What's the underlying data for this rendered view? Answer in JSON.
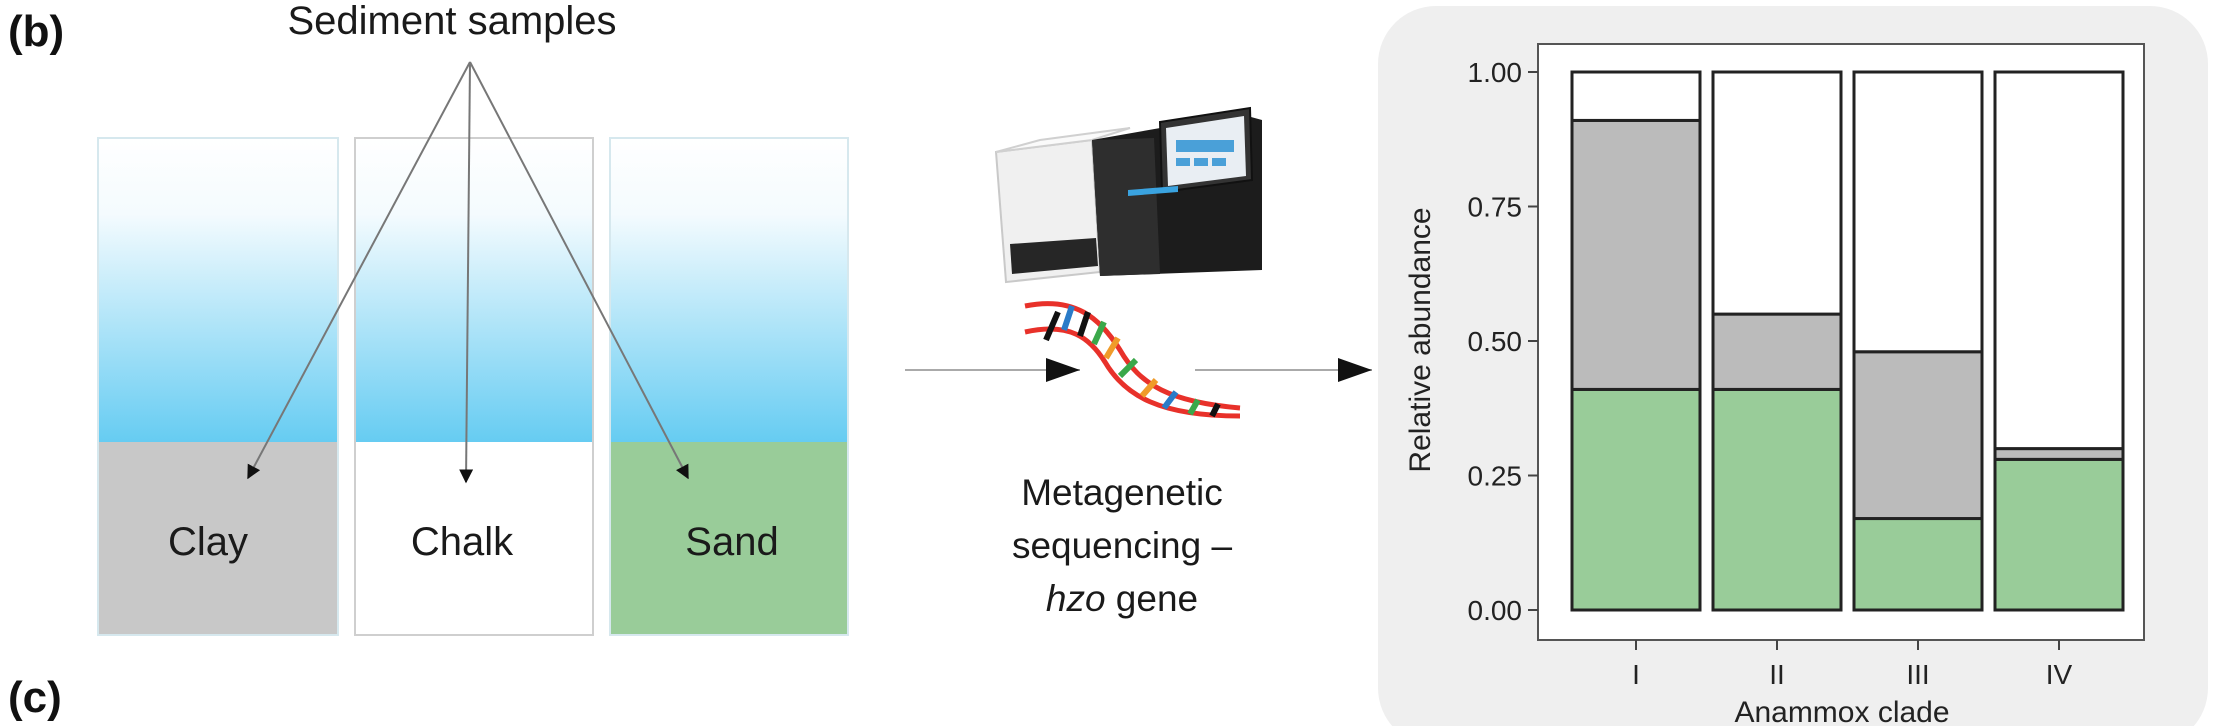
{
  "panel_b_label": "(b)",
  "panel_c_label": "(c)",
  "header": "Sediment samples",
  "sediments": [
    {
      "label": "Clay",
      "color": "#c8c8c8"
    },
    {
      "label": "Chalk",
      "color": "#ffffff"
    },
    {
      "label": "Sand",
      "color": "#99cc99"
    }
  ],
  "water_gradient": {
    "top": "#ffffff",
    "bottom": "#66ccf2"
  },
  "sequencing": {
    "line1": "Metagenetic",
    "line2": "sequencing –",
    "line3_italic": "hzo",
    "line3_rest": " gene"
  },
  "colors": {
    "green": "#99cc99",
    "gray": "#bbbbbb",
    "white": "#ffffff",
    "panel_bg": "#efefef",
    "dna_backbone": "#e8312a"
  },
  "chart_data": {
    "type": "bar",
    "stacked": true,
    "categories": [
      "I",
      "II",
      "III",
      "IV"
    ],
    "series": [
      {
        "color": "#99cc99",
        "values": [
          0.41,
          0.41,
          0.17,
          0.28
        ]
      },
      {
        "color": "#bbbbbb",
        "values": [
          0.5,
          0.14,
          0.31,
          0.02
        ]
      },
      {
        "color": "#ffffff",
        "values": [
          0.09,
          0.45,
          0.52,
          0.7
        ]
      }
    ],
    "xlabel": "Anammox clade",
    "ylabel": "Relative abundance",
    "ylim": [
      0,
      1
    ],
    "yticks": [
      "0.00",
      "0.25",
      "0.50",
      "0.75",
      "1.00"
    ],
    "ytick_values": [
      0,
      0.25,
      0.5,
      0.75,
      1.0
    ],
    "grid": false
  }
}
